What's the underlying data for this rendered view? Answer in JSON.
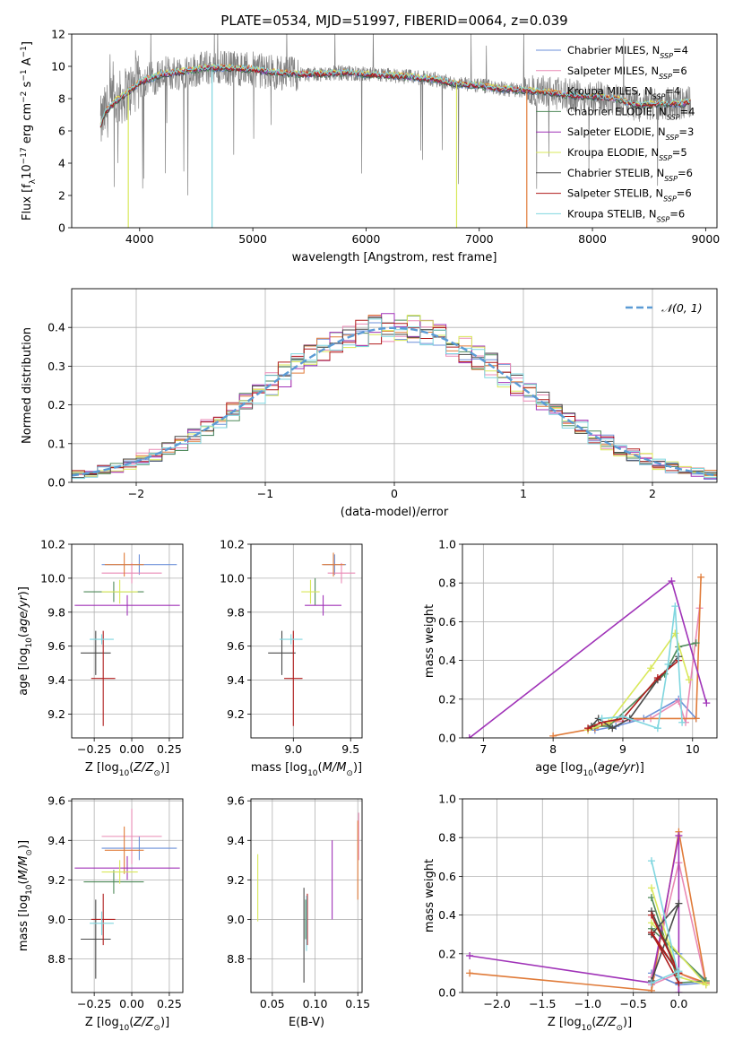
{
  "figure_title": "PLATE=0534, MJD=51997, FIBERID=0064, z=0.039",
  "colors": {
    "CM": "#6b8fd8",
    "SM": "#e98ab5",
    "KM": "#e07b39",
    "CE": "#4f8a5a",
    "SE": "#a033b8",
    "KE": "#d9e85a",
    "CS": "#4a4a4a",
    "SS": "#b01c1c",
    "KS": "#7fd6df",
    "obs": "#808080",
    "normal": "#5b9bd5"
  },
  "chart_data": [
    {
      "id": "spectrum",
      "type": "line",
      "xlabel": "wavelength [Angstrom, rest frame]",
      "ylabel": "Flux [f_λ10^-17 erg cm^-2 s^-1 A^-1]",
      "xlim": [
        3400,
        9100
      ],
      "ylim": [
        0,
        12
      ],
      "xticks": [
        4000,
        5000,
        6000,
        7000,
        8000,
        9000
      ],
      "yticks": [
        0,
        2,
        4,
        6,
        8,
        10,
        12
      ],
      "legend": {
        "location": "upper-right",
        "entries": [
          {
            "key": "CM",
            "text": "Chabrier MILES, N",
            "sub": "SSP",
            "suffix": "=4"
          },
          {
            "key": "SM",
            "text": "Salpeter MILES, N",
            "sub": "SSP",
            "suffix": "=6"
          },
          {
            "key": "KM",
            "text": "Kroupa MILES, N",
            "sub": "SSP",
            "suffix": "=4"
          },
          {
            "key": "CE",
            "text": "Chabrier ELODIE, N",
            "sub": "SSP",
            "suffix": "=4"
          },
          {
            "key": "SE",
            "text": "Salpeter ELODIE, N",
            "sub": "SSP",
            "suffix": "=3"
          },
          {
            "key": "KE",
            "text": "Kroupa ELODIE, N",
            "sub": "SSP",
            "suffix": "=5"
          },
          {
            "key": "CS",
            "text": "Chabrier STELIB, N",
            "sub": "SSP",
            "suffix": "=6"
          },
          {
            "key": "SS",
            "text": "Salpeter STELIB, N",
            "sub": "SSP",
            "suffix": "=6"
          },
          {
            "key": "KS",
            "text": "Kroupa STELIB, N",
            "sub": "SSP",
            "suffix": "=6"
          }
        ]
      },
      "continuum": [
        [
          3650,
          6.3
        ],
        [
          3700,
          7.2
        ],
        [
          3800,
          7.9
        ],
        [
          3900,
          8.4
        ],
        [
          4000,
          9.0
        ],
        [
          4200,
          9.5
        ],
        [
          4400,
          9.7
        ],
        [
          4600,
          9.9
        ],
        [
          4800,
          9.9
        ],
        [
          5000,
          9.8
        ],
        [
          5200,
          9.6
        ],
        [
          5500,
          9.5
        ],
        [
          5800,
          9.6
        ],
        [
          6000,
          9.5
        ],
        [
          6300,
          9.4
        ],
        [
          6600,
          9.2
        ],
        [
          6800,
          8.9
        ],
        [
          7000,
          8.8
        ],
        [
          7200,
          8.6
        ],
        [
          7400,
          8.5
        ],
        [
          7600,
          8.4
        ],
        [
          7800,
          8.2
        ],
        [
          8000,
          8.1
        ],
        [
          8200,
          8.0
        ],
        [
          8400,
          7.6
        ],
        [
          8600,
          7.7
        ],
        [
          8800,
          7.7
        ],
        [
          8850,
          7.8
        ]
      ],
      "model_gaps": [
        {
          "key": "KS",
          "x": 4640
        },
        {
          "key": "KE",
          "x": 6800
        },
        {
          "key": "KM",
          "x": 7420
        },
        {
          "key": "KE",
          "x": 3900
        }
      ]
    },
    {
      "id": "residuals",
      "type": "histogram",
      "xlabel": "(data-model)/error",
      "ylabel": "Normed distribution",
      "xlim": [
        -2.5,
        2.5
      ],
      "ylim": [
        0,
        0.5
      ],
      "xticks": [
        -2,
        -1,
        0,
        1,
        2
      ],
      "yticks": [
        0.0,
        0.1,
        0.2,
        0.3,
        0.4
      ],
      "bin_width": 0.1,
      "legend": {
        "location": "upper-right",
        "label": "N(0,1)"
      }
    },
    {
      "id": "age_vs_Z",
      "type": "errorbar",
      "xlabel": "Z [log10(Z/Z☉)]",
      "ylabel": "age [log10(age/yr)]",
      "xlim": [
        -0.4,
        0.34
      ],
      "ylim": [
        9.06,
        10.2
      ],
      "xticks": [
        -0.25,
        0.0,
        0.25
      ],
      "yticks": [
        9.2,
        9.4,
        9.6,
        9.8,
        10.0,
        10.2
      ],
      "points": [
        {
          "key": "CM",
          "x": 0.05,
          "y": 10.08,
          "xerr": 0.25,
          "yerr": 0.0
        },
        {
          "key": "SM",
          "x": 0.0,
          "y": 10.03,
          "xerr": 0.2,
          "yerr": 0.0
        },
        {
          "key": "KM",
          "x": -0.05,
          "y": 10.08,
          "xerr": 0.13,
          "yerr": 0.07
        },
        {
          "key": "CE",
          "x": -0.12,
          "y": 9.92,
          "xerr": 0.2,
          "yerr": 0.0
        },
        {
          "key": "SE",
          "x": -0.03,
          "y": 9.84,
          "xerr": 0.35,
          "yerr": 0.0
        },
        {
          "key": "KE",
          "x": -0.08,
          "y": 9.92,
          "xerr": 0.12,
          "yerr": 0.07
        },
        {
          "key": "CS",
          "x": -0.24,
          "y": 9.56,
          "xerr": 0.1,
          "yerr": 0.13
        },
        {
          "key": "SS",
          "x": -0.19,
          "y": 9.41,
          "xerr": 0.08,
          "yerr": 0.28
        },
        {
          "key": "KS",
          "x": -0.2,
          "y": 9.64,
          "xerr": 0.08,
          "yerr": 0.03
        }
      ]
    },
    {
      "id": "age_vs_mass",
      "type": "errorbar",
      "xlabel": "mass [log10(M/M☉)]",
      "ylabel": "",
      "xlim": [
        8.63,
        9.6
      ],
      "ylim": [
        9.06,
        10.2
      ],
      "xticks": [
        9.0,
        9.5
      ],
      "yticks": [
        9.2,
        9.4,
        9.6,
        9.8,
        10.0,
        10.2
      ],
      "points": [
        {
          "key": "CM",
          "x": 9.36,
          "y": 10.08,
          "xerr": 0.1,
          "yerr": 0.0
        },
        {
          "key": "SM",
          "x": 9.42,
          "y": 10.03,
          "xerr": 0.12,
          "yerr": 0.0
        },
        {
          "key": "KM",
          "x": 9.35,
          "y": 10.08,
          "xerr": 0.1,
          "yerr": 0.07
        },
        {
          "key": "CE",
          "x": 9.19,
          "y": 9.92,
          "xerr": 0.0,
          "yerr": 0.08
        },
        {
          "key": "SE",
          "x": 9.26,
          "y": 9.84,
          "xerr": 0.16,
          "yerr": 0.0
        },
        {
          "key": "KE",
          "x": 9.15,
          "y": 9.92,
          "xerr": 0.08,
          "yerr": 0.07
        },
        {
          "key": "CS",
          "x": 8.9,
          "y": 9.56,
          "xerr": 0.12,
          "yerr": 0.13
        },
        {
          "key": "SS",
          "x": 9.0,
          "y": 9.41,
          "xerr": 0.08,
          "yerr": 0.28
        },
        {
          "key": "KS",
          "x": 8.98,
          "y": 9.64,
          "xerr": 0.1,
          "yerr": 0.03
        }
      ]
    },
    {
      "id": "massweight_vs_age",
      "type": "line",
      "xlabel": "age [log10(age/yr)]",
      "ylabel": "mass weight",
      "xlim": [
        6.7,
        10.35
      ],
      "ylim": [
        0,
        1
      ],
      "xticks": [
        7,
        8,
        9,
        10
      ],
      "yticks": [
        0.0,
        0.2,
        0.4,
        0.6,
        0.8,
        1.0
      ],
      "series": [
        {
          "key": "CM",
          "x": [
            8.6,
            8.9,
            9.3,
            9.8,
            10.05
          ],
          "y": [
            0.04,
            0.06,
            0.1,
            0.2,
            0.1
          ]
        },
        {
          "key": "SM",
          "x": [
            8.5,
            8.8,
            9.4,
            9.8,
            9.9,
            10.1
          ],
          "y": [
            0.04,
            0.08,
            0.1,
            0.19,
            0.08,
            0.67
          ]
        },
        {
          "key": "KM",
          "x": [
            8.0,
            8.6,
            9.0,
            10.05,
            10.12
          ],
          "y": [
            0.01,
            0.05,
            0.1,
            0.1,
            0.83
          ]
        },
        {
          "key": "CE",
          "x": [
            8.6,
            8.8,
            9.6,
            9.8,
            10.05
          ],
          "y": [
            0.06,
            0.06,
            0.33,
            0.47,
            0.49
          ]
        },
        {
          "key": "SE",
          "x": [
            6.8,
            9.7,
            10.2
          ],
          "y": [
            0.0,
            0.81,
            0.18
          ]
        },
        {
          "key": "KE",
          "x": [
            8.5,
            8.8,
            9.4,
            9.75,
            9.95
          ],
          "y": [
            0.04,
            0.08,
            0.36,
            0.54,
            0.3
          ]
        },
        {
          "key": "CS",
          "x": [
            8.55,
            8.65,
            8.85,
            9.1,
            9.5,
            9.8
          ],
          "y": [
            0.06,
            0.1,
            0.05,
            0.1,
            0.3,
            0.42
          ]
        },
        {
          "key": "SS",
          "x": [
            8.5,
            8.7,
            9.0,
            9.5,
            9.8
          ],
          "y": [
            0.05,
            0.08,
            0.1,
            0.31,
            0.4
          ]
        },
        {
          "key": "KS",
          "x": [
            8.7,
            9.0,
            9.5,
            9.65,
            9.75,
            9.85
          ],
          "y": [
            0.1,
            0.11,
            0.05,
            0.38,
            0.68,
            0.08
          ]
        }
      ]
    },
    {
      "id": "mass_vs_Z",
      "type": "errorbar",
      "xlabel": "Z [log10(Z/Z☉)]",
      "ylabel": "mass [log10(M/M☉)]",
      "xlim": [
        -0.4,
        0.34
      ],
      "ylim": [
        8.63,
        9.61
      ],
      "xticks": [
        -0.25,
        0.0,
        0.25
      ],
      "yticks": [
        8.8,
        9.0,
        9.2,
        9.4,
        9.6
      ],
      "points": [
        {
          "key": "CM",
          "x": 0.05,
          "y": 9.36,
          "xerr": 0.25,
          "yerr": 0.0
        },
        {
          "key": "SM",
          "x": 0.0,
          "y": 9.42,
          "xerr": 0.2,
          "yerr": 0.14
        },
        {
          "key": "KM",
          "x": -0.05,
          "y": 9.35,
          "xerr": 0.13,
          "yerr": 0.12
        },
        {
          "key": "CE",
          "x": -0.12,
          "y": 9.19,
          "xerr": 0.2,
          "yerr": 0.0
        },
        {
          "key": "SE",
          "x": -0.03,
          "y": 9.26,
          "xerr": 0.35,
          "yerr": 0.0
        },
        {
          "key": "KE",
          "x": -0.08,
          "y": 9.24,
          "xerr": 0.12,
          "yerr": 0.0
        },
        {
          "key": "CS",
          "x": -0.24,
          "y": 8.9,
          "xerr": 0.1,
          "yerr": 0.2
        },
        {
          "key": "SS",
          "x": -0.19,
          "y": 9.0,
          "xerr": 0.08,
          "yerr": 0.13
        },
        {
          "key": "KS",
          "x": -0.2,
          "y": 8.98,
          "xerr": 0.08,
          "yerr": 0.0
        }
      ]
    },
    {
      "id": "mass_vs_ebv",
      "type": "errorbar",
      "xlabel": "E(B-V)",
      "ylabel": "",
      "xlim": [
        0.025,
        0.155
      ],
      "ylim": [
        8.63,
        9.61
      ],
      "xticks": [
        0.05,
        0.1,
        0.15
      ],
      "yticks": [
        8.8,
        9.0,
        9.2,
        9.4,
        9.6
      ],
      "points": [
        {
          "key": "CM",
          "x": 0.0905,
          "y": 9.0,
          "xerr": 0.0,
          "yerr": 0.1
        },
        {
          "key": "SM",
          "x": 0.151,
          "y": 9.42,
          "xerr": 0.0,
          "yerr": 0.12
        },
        {
          "key": "KM",
          "x": 0.15,
          "y": 9.3,
          "xerr": 0.0,
          "yerr": 0.2
        },
        {
          "key": "CE",
          "x": 0.089,
          "y": 9.0,
          "xerr": 0.0,
          "yerr": 0.1
        },
        {
          "key": "SE",
          "x": 0.12,
          "y": 9.2,
          "xerr": 0.0,
          "yerr": 0.2
        },
        {
          "key": "KE",
          "x": 0.033,
          "y": 9.16,
          "xerr": 0.0,
          "yerr": 0.17
        },
        {
          "key": "CS",
          "x": 0.087,
          "y": 8.92,
          "xerr": 0.0,
          "yerr": 0.24
        },
        {
          "key": "SS",
          "x": 0.091,
          "y": 9.0,
          "xerr": 0.0,
          "yerr": 0.13
        },
        {
          "key": "KS",
          "x": 0.09,
          "y": 8.98,
          "xerr": 0.0,
          "yerr": 0.14
        }
      ]
    },
    {
      "id": "massweight_vs_Z",
      "type": "line",
      "xlabel": "Z [log10(Z/Z☉)]",
      "ylabel": "mass weight",
      "xlim": [
        -2.38,
        0.42
      ],
      "ylim": [
        0,
        1
      ],
      "xticks": [
        -2.0,
        -1.5,
        -1.0,
        -0.5,
        0.0
      ],
      "yticks": [
        0.0,
        0.2,
        0.4,
        0.6,
        0.8,
        1.0
      ],
      "series": [
        {
          "key": "CM",
          "x": [
            -0.3,
            0.0,
            0.3,
            0.0
          ],
          "y": [
            0.1,
            0.04,
            0.05,
            0.2
          ]
        },
        {
          "key": "SM",
          "x": [
            -0.3,
            0.0,
            0.3,
            0.0,
            -0.3
          ],
          "y": [
            0.08,
            0.67,
            0.04,
            0.1,
            0.04
          ]
        },
        {
          "key": "KM",
          "x": [
            -2.3,
            -0.3,
            0.0,
            0.3,
            0.0
          ],
          "y": [
            0.1,
            0.01,
            0.83,
            0.05,
            0.1
          ]
        },
        {
          "key": "CE",
          "x": [
            -0.3,
            0.0,
            0.3,
            -0.3
          ],
          "y": [
            0.49,
            0.05,
            0.06,
            0.33
          ]
        },
        {
          "key": "SE",
          "x": [
            -2.3,
            -0.3,
            0.0,
            0.0
          ],
          "y": [
            0.19,
            0.05,
            0.81,
            0.0
          ]
        },
        {
          "key": "KE",
          "x": [
            -0.3,
            0.0,
            0.3,
            -0.3
          ],
          "y": [
            0.54,
            0.08,
            0.04,
            0.36
          ]
        },
        {
          "key": "CS",
          "x": [
            -0.3,
            0.0,
            -0.3,
            0.0,
            -0.3
          ],
          "y": [
            0.42,
            0.1,
            0.3,
            0.46,
            0.06
          ]
        },
        {
          "key": "SS",
          "x": [
            -0.3,
            0.0,
            -0.3,
            0.0
          ],
          "y": [
            0.4,
            0.1,
            0.31,
            0.05
          ]
        },
        {
          "key": "KS",
          "x": [
            -0.3,
            0.0,
            0.0,
            -0.3
          ],
          "y": [
            0.68,
            0.08,
            0.11,
            0.05
          ]
        }
      ]
    }
  ]
}
